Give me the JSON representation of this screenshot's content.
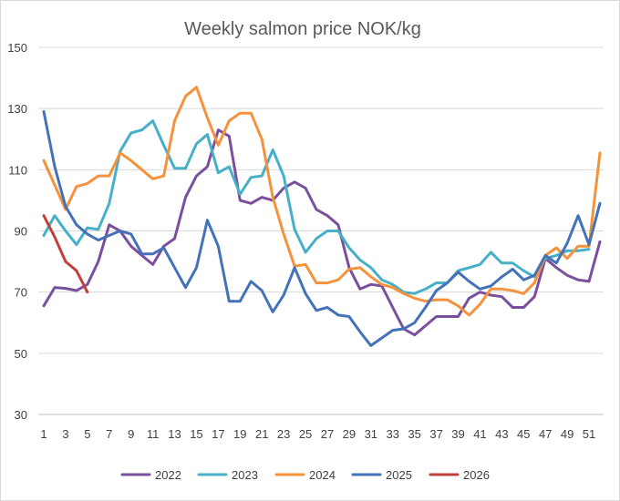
{
  "chart_data": {
    "type": "line",
    "title": "Weekly salmon price NOK/kg",
    "xlabel": "",
    "ylabel": "",
    "ylim": [
      30,
      150
    ],
    "y_ticks": [
      30,
      50,
      70,
      90,
      110,
      130,
      150
    ],
    "x_ticks": [
      1,
      3,
      5,
      7,
      9,
      11,
      13,
      15,
      17,
      19,
      21,
      23,
      25,
      27,
      29,
      31,
      33,
      35,
      37,
      39,
      41,
      43,
      45,
      47,
      49,
      51
    ],
    "x_range": [
      1,
      52
    ],
    "grid": true,
    "legend_position": "bottom",
    "series": [
      {
        "name": "2022",
        "color": "#7a4f9e",
        "x": [
          1,
          2,
          3,
          4,
          5,
          6,
          7,
          8,
          9,
          10,
          11,
          12,
          13,
          14,
          15,
          16,
          17,
          18,
          19,
          20,
          21,
          22,
          23,
          24,
          25,
          26,
          27,
          28,
          29,
          30,
          31,
          32,
          33,
          34,
          35,
          36,
          37,
          38,
          39,
          40,
          41,
          42,
          43,
          44,
          45,
          46,
          47,
          48,
          49,
          50,
          51,
          52
        ],
        "values": [
          65.5,
          71.5,
          71.2,
          70.5,
          72.5,
          80,
          92,
          90,
          85,
          82,
          79,
          85,
          87.5,
          101,
          108,
          111,
          123,
          121,
          100,
          99,
          101,
          100,
          104,
          106,
          104,
          97,
          95,
          92,
          78,
          71,
          72.5,
          72,
          65,
          58,
          56,
          59,
          62,
          62,
          62,
          68,
          70,
          69,
          68.5,
          65,
          65,
          68.5,
          81,
          78,
          75.5,
          74,
          73.5,
          86.5
        ]
      },
      {
        "name": "2023",
        "color": "#47afc7",
        "x": [
          1,
          2,
          3,
          4,
          5,
          6,
          7,
          8,
          9,
          10,
          11,
          12,
          13,
          14,
          15,
          16,
          17,
          18,
          19,
          20,
          21,
          22,
          23,
          24,
          25,
          26,
          27,
          28,
          29,
          30,
          31,
          32,
          33,
          34,
          35,
          36,
          37,
          38,
          39,
          40,
          41,
          42,
          43,
          44,
          45,
          46,
          47,
          48,
          49,
          50,
          51
        ],
        "values": [
          88.5,
          95,
          90,
          85.5,
          91,
          90.5,
          99,
          116,
          122,
          123,
          126,
          118,
          110.5,
          110.5,
          118.5,
          121.5,
          109,
          111,
          102,
          107.5,
          108,
          116.5,
          108,
          90.5,
          83,
          87.5,
          90,
          90,
          84.5,
          80.5,
          78,
          74,
          72.5,
          70,
          69.5,
          71,
          73,
          73,
          77,
          78,
          79,
          83,
          79.5,
          79.5,
          77,
          75,
          81,
          82,
          83.5,
          83.5,
          84
        ]
      },
      {
        "name": "2024",
        "color": "#f5923b",
        "x": [
          1,
          2,
          3,
          4,
          5,
          6,
          7,
          8,
          9,
          10,
          11,
          12,
          13,
          14,
          15,
          16,
          17,
          18,
          19,
          20,
          21,
          22,
          23,
          24,
          25,
          26,
          27,
          28,
          29,
          30,
          31,
          32,
          33,
          34,
          35,
          36,
          37,
          38,
          39,
          40,
          41,
          42,
          43,
          44,
          45,
          46,
          47,
          48,
          49,
          50,
          51,
          52
        ],
        "values": [
          113,
          105,
          97,
          104.5,
          105.5,
          108,
          108,
          115.5,
          113,
          110,
          107,
          108,
          126,
          134,
          137,
          127,
          118,
          126,
          128.5,
          128.5,
          120,
          101,
          89,
          78.5,
          79,
          73,
          73,
          74,
          77.5,
          78,
          75,
          72.5,
          71.5,
          69.5,
          68,
          67,
          67.5,
          67.5,
          65.5,
          62.5,
          66,
          71,
          71,
          70.5,
          69.5,
          73,
          82,
          84.5,
          81,
          85,
          85,
          115.5
        ]
      },
      {
        "name": "2025",
        "color": "#4472b8",
        "x": [
          1,
          2,
          3,
          4,
          5,
          6,
          7,
          8,
          9,
          10,
          11,
          12,
          13,
          14,
          15,
          16,
          17,
          18,
          19,
          20,
          21,
          22,
          23,
          24,
          25,
          26,
          27,
          28,
          29,
          30,
          31,
          32,
          33,
          34,
          35,
          36,
          37,
          38,
          39,
          40,
          41,
          42,
          43,
          44,
          45,
          46,
          47,
          48,
          49,
          50,
          51,
          52
        ],
        "values": [
          129,
          111,
          98,
          92,
          89,
          87,
          88.5,
          90,
          89,
          82.5,
          82.5,
          84.5,
          78,
          71.5,
          78,
          93.5,
          85,
          67,
          67,
          73.5,
          70.5,
          63.5,
          69,
          78,
          69.5,
          64,
          65,
          62.5,
          62,
          57,
          52.5,
          55,
          57.5,
          58,
          60,
          65,
          70.5,
          73,
          76.5,
          73.5,
          71,
          72,
          75,
          77.5,
          74,
          75.5,
          82,
          79.5,
          86,
          95,
          85.5,
          99
        ]
      },
      {
        "name": "2026",
        "color": "#c0403c",
        "x": [
          1,
          2,
          3,
          4,
          5
        ],
        "values": [
          95,
          88,
          80,
          77,
          70
        ]
      }
    ]
  }
}
